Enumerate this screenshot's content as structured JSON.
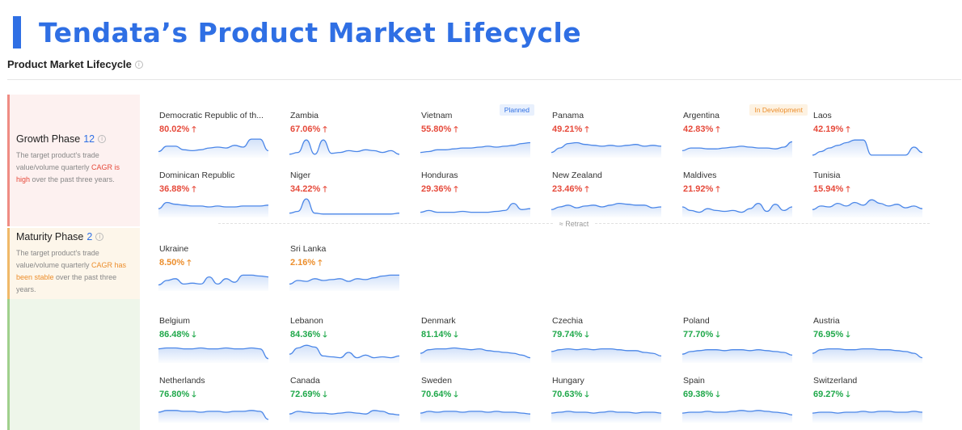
{
  "banner": {
    "title": "Tendata’s Product Market Lifecycle"
  },
  "section": {
    "title": "Product Market Lifecycle",
    "info_icon": "i"
  },
  "phases": {
    "growth": {
      "name": "Growth Phase",
      "count": "12",
      "info_icon": "i",
      "desc_pre": "The target product's trade value/volume quarterly ",
      "desc_hl": "CAGR is high",
      "desc_post": " over the past three years."
    },
    "maturity": {
      "name": "Maturity Phase",
      "count": "2",
      "info_icon": "i",
      "desc_pre": "The target product's trade value/volume quarterly ",
      "desc_hl": "CAGR has been stable",
      "desc_post": " over the past three years."
    }
  },
  "retract_label": "≈ Retract",
  "colors": {
    "accent": "#2f6fe4",
    "up_red": "#e64a3b",
    "up_orange": "#ec8e2c",
    "down_green": "#1fa84a"
  },
  "cards": [
    {
      "name": "Democratic Republic of th...",
      "value": "80.02%",
      "arrow": "🡑",
      "trend": "up-red",
      "tag": "",
      "spark": [
        0.25,
        0.55,
        0.55,
        0.35,
        0.3,
        0.35,
        0.45,
        0.5,
        0.45,
        0.6,
        0.5,
        0.95,
        0.95,
        0.3
      ]
    },
    {
      "name": "Zambia",
      "value": "67.06%",
      "arrow": "🡑",
      "trend": "up-red",
      "tag": "",
      "spark": [
        0.1,
        0.2,
        0.9,
        0.1,
        0.9,
        0.15,
        0.2,
        0.3,
        0.25,
        0.35,
        0.3,
        0.2,
        0.3,
        0.1
      ]
    },
    {
      "name": "Vietnam",
      "value": "55.80%",
      "arrow": "🡑",
      "trend": "up-red",
      "tag": "Planned",
      "spark": [
        0.2,
        0.25,
        0.35,
        0.35,
        0.4,
        0.45,
        0.45,
        0.5,
        0.55,
        0.5,
        0.55,
        0.6,
        0.7,
        0.75
      ]
    },
    {
      "name": "Panama",
      "value": "49.21%",
      "arrow": "🡑",
      "trend": "up-red",
      "tag": "",
      "spark": [
        0.2,
        0.45,
        0.7,
        0.75,
        0.65,
        0.6,
        0.55,
        0.6,
        0.55,
        0.6,
        0.65,
        0.55,
        0.6,
        0.55
      ]
    },
    {
      "name": "Argentina",
      "value": "42.83%",
      "arrow": "🡑",
      "trend": "up-red",
      "tag": "In Development",
      "spark": [
        0.3,
        0.45,
        0.45,
        0.4,
        0.4,
        0.45,
        0.5,
        0.55,
        0.5,
        0.45,
        0.45,
        0.4,
        0.5,
        0.8
      ]
    },
    {
      "name": "Laos",
      "value": "42.19%",
      "arrow": "🡑",
      "trend": "up-red",
      "tag": "",
      "spark": [
        0.05,
        0.25,
        0.45,
        0.6,
        0.75,
        0.9,
        0.9,
        0.05,
        0.05,
        0.05,
        0.05,
        0.05,
        0.5,
        0.2
      ]
    },
    {
      "name": "Dominican Republic",
      "value": "36.88%",
      "arrow": "🡑",
      "trend": "up-red",
      "tag": "",
      "spark": [
        0.4,
        0.75,
        0.65,
        0.6,
        0.55,
        0.55,
        0.5,
        0.55,
        0.5,
        0.5,
        0.55,
        0.55,
        0.55,
        0.6
      ]
    },
    {
      "name": "Niger",
      "value": "34.22%",
      "arrow": "🡑",
      "trend": "up-red",
      "tag": "",
      "spark": [
        0.15,
        0.25,
        0.95,
        0.15,
        0.1,
        0.1,
        0.1,
        0.1,
        0.1,
        0.1,
        0.1,
        0.1,
        0.1,
        0.15
      ]
    },
    {
      "name": "Honduras",
      "value": "29.36%",
      "arrow": "🡑",
      "trend": "up-red",
      "tag": "",
      "spark": [
        0.2,
        0.3,
        0.2,
        0.2,
        0.2,
        0.25,
        0.2,
        0.2,
        0.2,
        0.25,
        0.3,
        0.7,
        0.35,
        0.4
      ]
    },
    {
      "name": "New Zealand",
      "value": "23.46%",
      "arrow": "🡑",
      "trend": "up-red",
      "tag": "",
      "spark": [
        0.35,
        0.5,
        0.6,
        0.45,
        0.55,
        0.6,
        0.5,
        0.6,
        0.7,
        0.65,
        0.6,
        0.6,
        0.45,
        0.5
      ]
    },
    {
      "name": "Maldives",
      "value": "21.92%",
      "arrow": "🡑",
      "trend": "up-red",
      "tag": "",
      "spark": [
        0.5,
        0.3,
        0.2,
        0.4,
        0.3,
        0.25,
        0.3,
        0.2,
        0.4,
        0.7,
        0.25,
        0.65,
        0.3,
        0.5
      ]
    },
    {
      "name": "Tunisia",
      "value": "15.94%",
      "arrow": "🡑",
      "trend": "up-red",
      "tag": "",
      "spark": [
        0.35,
        0.55,
        0.5,
        0.7,
        0.55,
        0.75,
        0.6,
        0.9,
        0.7,
        0.55,
        0.65,
        0.45,
        0.55,
        0.4
      ]
    },
    {
      "name": "Ukraine",
      "value": "8.50%",
      "arrow": "🡑",
      "trend": "up-orange",
      "tag": "",
      "spark": [
        0.25,
        0.5,
        0.6,
        0.3,
        0.35,
        0.3,
        0.7,
        0.3,
        0.6,
        0.4,
        0.8,
        0.8,
        0.75,
        0.7
      ]
    },
    {
      "name": "Sri Lanka",
      "value": "2.16%",
      "arrow": "🡑",
      "trend": "up-orange",
      "tag": "",
      "spark": [
        0.3,
        0.5,
        0.45,
        0.6,
        0.5,
        0.55,
        0.6,
        0.45,
        0.6,
        0.55,
        0.65,
        0.75,
        0.8,
        0.8
      ]
    },
    {
      "name": "Belgium",
      "value": "86.48%",
      "arrow": "🡓",
      "trend": "down-green",
      "tag": "",
      "spark": [
        0.7,
        0.75,
        0.75,
        0.7,
        0.7,
        0.75,
        0.7,
        0.7,
        0.75,
        0.7,
        0.7,
        0.75,
        0.7,
        0.15
      ]
    },
    {
      "name": "Lebanon",
      "value": "84.36%",
      "arrow": "🡓",
      "trend": "down-green",
      "tag": "",
      "spark": [
        0.4,
        0.75,
        0.9,
        0.8,
        0.3,
        0.25,
        0.2,
        0.5,
        0.2,
        0.35,
        0.2,
        0.25,
        0.2,
        0.3
      ]
    },
    {
      "name": "Denmark",
      "value": "81.14%",
      "arrow": "🡓",
      "trend": "down-green",
      "tag": "",
      "spark": [
        0.45,
        0.65,
        0.7,
        0.7,
        0.75,
        0.7,
        0.65,
        0.7,
        0.6,
        0.55,
        0.5,
        0.45,
        0.35,
        0.2
      ]
    },
    {
      "name": "Czechia",
      "value": "79.74%",
      "arrow": "🡓",
      "trend": "down-green",
      "tag": "",
      "spark": [
        0.55,
        0.65,
        0.7,
        0.65,
        0.7,
        0.65,
        0.7,
        0.7,
        0.65,
        0.6,
        0.6,
        0.5,
        0.45,
        0.3
      ]
    },
    {
      "name": "Poland",
      "value": "77.70%",
      "arrow": "🡓",
      "trend": "down-green",
      "tag": "",
      "spark": [
        0.4,
        0.55,
        0.6,
        0.65,
        0.65,
        0.6,
        0.65,
        0.65,
        0.6,
        0.65,
        0.6,
        0.55,
        0.5,
        0.35
      ]
    },
    {
      "name": "Austria",
      "value": "76.95%",
      "arrow": "🡓",
      "trend": "down-green",
      "tag": "",
      "spark": [
        0.45,
        0.65,
        0.7,
        0.7,
        0.65,
        0.65,
        0.7,
        0.7,
        0.65,
        0.65,
        0.6,
        0.55,
        0.45,
        0.2
      ]
    },
    {
      "name": "Netherlands",
      "value": "76.80%",
      "arrow": "🡓",
      "trend": "down-green",
      "tag": "",
      "spark": [
        0.5,
        0.6,
        0.6,
        0.55,
        0.55,
        0.5,
        0.55,
        0.55,
        0.5,
        0.55,
        0.55,
        0.6,
        0.55,
        0.1
      ]
    },
    {
      "name": "Canada",
      "value": "72.69%",
      "arrow": "🡓",
      "trend": "down-green",
      "tag": "",
      "spark": [
        0.4,
        0.55,
        0.5,
        0.45,
        0.45,
        0.4,
        0.45,
        0.5,
        0.45,
        0.4,
        0.6,
        0.55,
        0.4,
        0.35
      ]
    },
    {
      "name": "Sweden",
      "value": "70.64%",
      "arrow": "🡓",
      "trend": "down-green",
      "tag": "",
      "spark": [
        0.45,
        0.55,
        0.5,
        0.55,
        0.55,
        0.5,
        0.55,
        0.55,
        0.5,
        0.55,
        0.5,
        0.5,
        0.45,
        0.4
      ]
    },
    {
      "name": "Hungary",
      "value": "70.63%",
      "arrow": "🡓",
      "trend": "down-green",
      "tag": "",
      "spark": [
        0.45,
        0.5,
        0.55,
        0.5,
        0.5,
        0.45,
        0.5,
        0.55,
        0.5,
        0.5,
        0.45,
        0.5,
        0.5,
        0.45
      ]
    },
    {
      "name": "Spain",
      "value": "69.38%",
      "arrow": "🡓",
      "trend": "down-green",
      "tag": "",
      "spark": [
        0.45,
        0.5,
        0.5,
        0.55,
        0.5,
        0.5,
        0.55,
        0.6,
        0.55,
        0.6,
        0.55,
        0.5,
        0.45,
        0.35
      ]
    },
    {
      "name": "Switzerland",
      "value": "69.27%",
      "arrow": "🡓",
      "trend": "down-green",
      "tag": "",
      "spark": [
        0.45,
        0.5,
        0.5,
        0.45,
        0.5,
        0.5,
        0.55,
        0.5,
        0.55,
        0.55,
        0.5,
        0.5,
        0.55,
        0.5
      ]
    }
  ]
}
